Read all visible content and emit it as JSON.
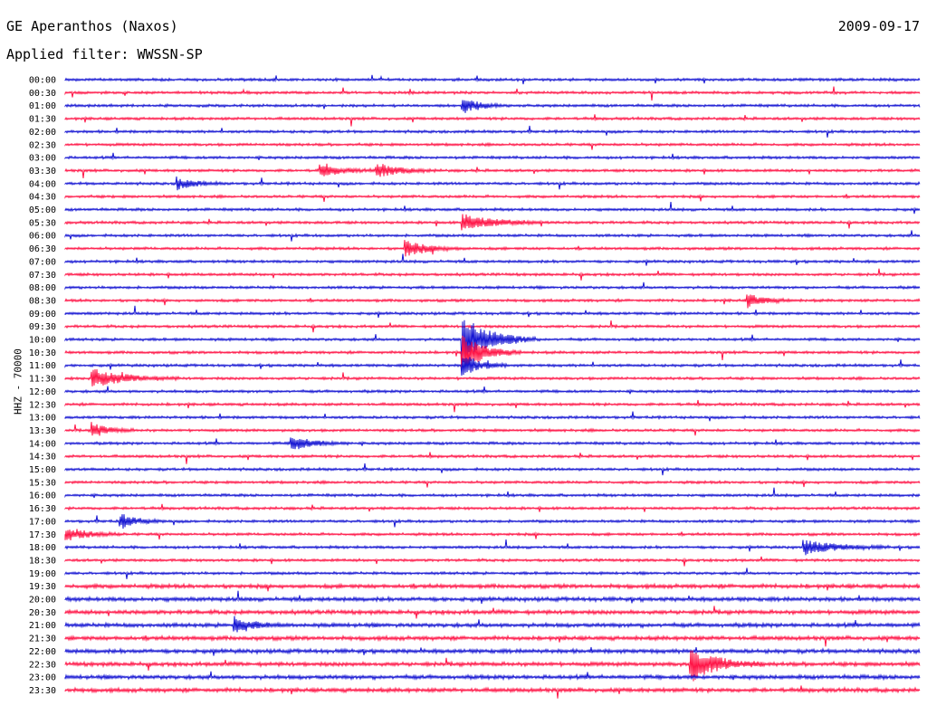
{
  "header": {
    "station": "GE Aperanthos (Naxos)",
    "date": "2009-09-17",
    "filter": "Applied filter: WWSSN-SP",
    "channel_label": "HHZ - 70000"
  },
  "colors": {
    "even_rows": "#1414d2",
    "odd_rows": "#ff1446"
  },
  "chart_data": {
    "type": "line",
    "title": "GE Aperanthos (Naxos)",
    "subtitle": "Applied filter: WWSSN-SP",
    "ylabel": "HHZ - 70000",
    "xlabel": "",
    "row_labels": [
      "00:00",
      "00:30",
      "01:00",
      "01:30",
      "02:00",
      "02:30",
      "03:00",
      "03:30",
      "04:00",
      "04:30",
      "05:00",
      "05:30",
      "06:00",
      "06:30",
      "07:00",
      "07:30",
      "08:00",
      "08:30",
      "09:00",
      "09:30",
      "10:00",
      "10:30",
      "11:00",
      "11:30",
      "12:00",
      "12:30",
      "13:00",
      "13:30",
      "14:00",
      "14:30",
      "15:00",
      "15:30",
      "16:00",
      "16:30",
      "17:00",
      "17:30",
      "18:00",
      "18:30",
      "19:00",
      "19:30",
      "20:00",
      "20:30",
      "21:00",
      "21:30",
      "22:00",
      "22:30",
      "23:00",
      "23:30"
    ],
    "row_minutes": 30,
    "events": [
      {
        "row": "01:00",
        "minute": 14,
        "amplitude": 0.7,
        "duration": 1.5
      },
      {
        "row": "03:30",
        "minute": 9,
        "amplitude": 0.5,
        "duration": 2
      },
      {
        "row": "03:30",
        "minute": 11,
        "amplitude": 0.6,
        "duration": 2
      },
      {
        "row": "04:00",
        "minute": 4,
        "amplitude": 0.5,
        "duration": 1.5
      },
      {
        "row": "05:30",
        "minute": 14,
        "amplitude": 0.7,
        "duration": 3
      },
      {
        "row": "06:30",
        "minute": 12,
        "amplitude": 0.7,
        "duration": 2
      },
      {
        "row": "08:30",
        "minute": 24,
        "amplitude": 0.6,
        "duration": 1.5
      },
      {
        "row": "10:00",
        "minute": 14,
        "amplitude": 2.2,
        "duration": 2.5
      },
      {
        "row": "10:30",
        "minute": 14,
        "amplitude": 1.6,
        "duration": 2
      },
      {
        "row": "11:00",
        "minute": 14,
        "amplitude": 1.0,
        "duration": 1.5
      },
      {
        "row": "11:30",
        "minute": 1,
        "amplitude": 0.8,
        "duration": 3
      },
      {
        "row": "13:30",
        "minute": 1,
        "amplitude": 0.6,
        "duration": 1.5
      },
      {
        "row": "14:00",
        "minute": 8,
        "amplitude": 0.6,
        "duration": 2
      },
      {
        "row": "17:00",
        "minute": 2,
        "amplitude": 0.6,
        "duration": 1.5
      },
      {
        "row": "17:30",
        "minute": 0,
        "amplitude": 0.7,
        "duration": 2
      },
      {
        "row": "18:00",
        "minute": 26,
        "amplitude": 0.6,
        "duration": 3
      },
      {
        "row": "21:00",
        "minute": 6,
        "amplitude": 0.7,
        "duration": 1.5
      },
      {
        "row": "22:30",
        "minute": 22,
        "amplitude": 1.5,
        "duration": 2.5
      }
    ]
  }
}
